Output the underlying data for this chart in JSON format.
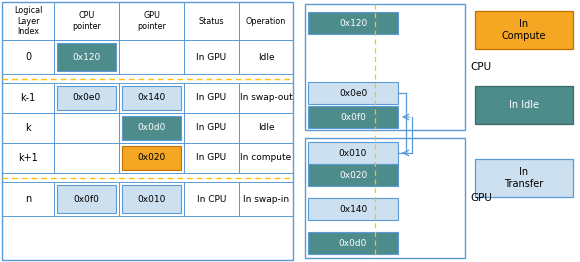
{
  "fig_width": 5.8,
  "fig_height": 2.62,
  "dpi": 100,
  "bg_color": "#ffffff",
  "border_color": "#5b9bd5",
  "dashed_color": "#ffc000",
  "teal_dark": "#4e8c8c",
  "teal_light": "#b8d4e8",
  "orange": "#f5a623",
  "light_blue": "#cce0f0",
  "col_headers": [
    "Logical\nLayer\nIndex",
    "CPU\npointer",
    "GPU\npointer",
    "Status",
    "Operation"
  ],
  "rows": [
    {
      "idx": "0",
      "cpu": "0x120",
      "gpu": "",
      "cpu_fc": "#4e8c8c",
      "gpu_fc": "",
      "status": "In GPU",
      "op": "Idle"
    },
    {
      "idx": "k-1",
      "cpu": "0x0e0",
      "gpu": "0x140",
      "cpu_fc": "#cce0f0",
      "gpu_fc": "#cce0f0",
      "status": "In GPU",
      "op": "In swap-out"
    },
    {
      "idx": "k",
      "cpu": "",
      "gpu": "0x0d0",
      "cpu_fc": "",
      "gpu_fc": "#4e8c8c",
      "status": "In GPU",
      "op": "Idle"
    },
    {
      "idx": "k+1",
      "cpu": "",
      "gpu": "0x020",
      "cpu_fc": "",
      "gpu_fc": "#f5a623",
      "status": "In GPU",
      "op": "In compute"
    },
    {
      "idx": "n",
      "cpu": "0x0f0",
      "gpu": "0x010",
      "cpu_fc": "#cce0f0",
      "gpu_fc": "#cce0f0",
      "status": "In CPU",
      "op": "In swap-in"
    }
  ],
  "legend": [
    {
      "label": "In\nCompute",
      "color": "#f5a623",
      "ec": "#c07000"
    },
    {
      "label": "In Idle",
      "color": "#4e8c8c",
      "ec": "#3a6a6a"
    },
    {
      "label": "In\nTransfer",
      "color": "#cce0f0",
      "ec": "#5b9bd5"
    }
  ]
}
